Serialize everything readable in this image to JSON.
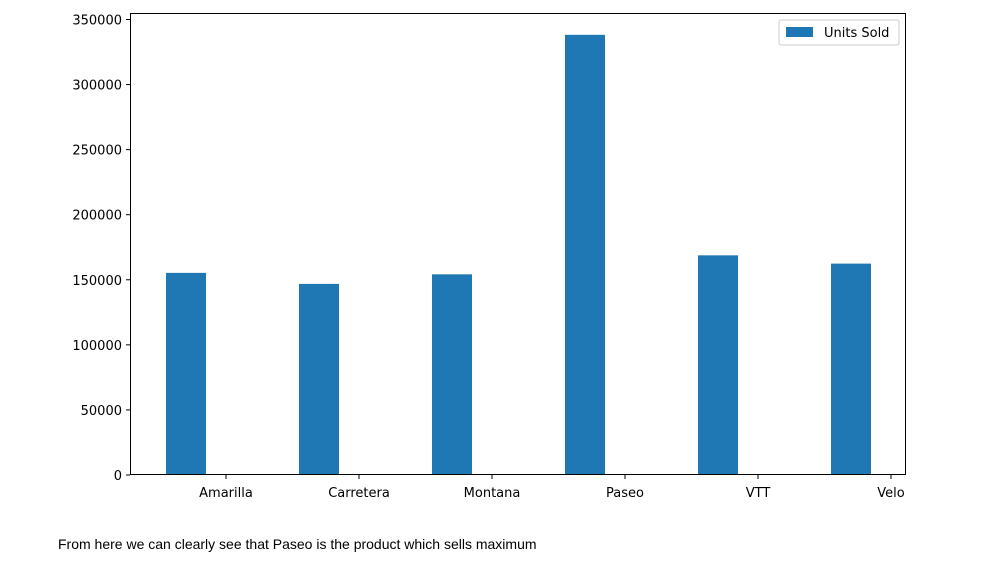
{
  "chart_data": {
    "type": "bar",
    "categories": [
      "Amarilla",
      "Carretera",
      "Montana",
      "Paseo",
      "VTT",
      "Velo"
    ],
    "series": [
      {
        "name": "Units Sold",
        "values": [
          155315,
          146846,
          154198,
          338239,
          168783,
          162424
        ],
        "color": "#1f77b4"
      }
    ],
    "title": "",
    "xlabel": "",
    "ylabel": "",
    "ylim": [
      0,
      355000
    ],
    "yticks": [
      0,
      50000,
      100000,
      150000,
      200000,
      250000,
      300000,
      350000
    ],
    "grid": false,
    "legend": {
      "placement": "top-right",
      "entries": [
        "Units Sold"
      ]
    }
  },
  "caption": "From here we can clearly see that Paseo is the product which sells maximum"
}
